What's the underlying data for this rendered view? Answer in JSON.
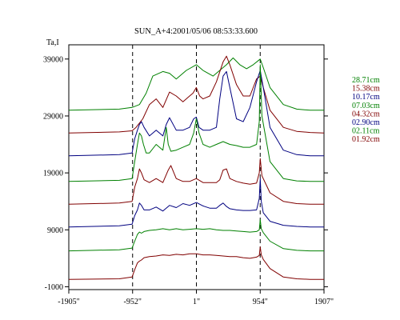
{
  "chart_data": {
    "type": "line",
    "title": "SUN_A+4:2001/05/06 08:53:33.600",
    "ylabel": "Ta,I",
    "xlabel": "",
    "x_ticks": [
      -1905,
      -952,
      1,
      954,
      1907
    ],
    "x_tick_labels": [
      "-1905\"",
      "-952\"",
      "1\"",
      "954\"",
      "1907\""
    ],
    "y_ticks": [
      39000,
      29000,
      19000,
      9000,
      -1000
    ],
    "y_tick_labels": [
      "39000",
      "29000",
      "19000",
      "9000",
      "-1000"
    ],
    "xlim": [
      -1905,
      1907
    ],
    "ylim": [
      -1500,
      41500
    ],
    "vlines": [
      -952,
      1,
      954
    ],
    "grid": false,
    "legend_position": "right",
    "colors": {
      "green": "#008000",
      "red": "#800000",
      "blue": "#000080"
    },
    "series": [
      {
        "name": "28.71cm",
        "color": "green",
        "x": [
          -1905,
          -1150,
          -960,
          -850,
          -750,
          -650,
          -500,
          -400,
          -300,
          -150,
          0,
          100,
          250,
          450,
          550,
          650,
          750,
          850,
          954,
          1000,
          1100,
          1300,
          1500,
          1700,
          1907
        ],
        "y": [
          30000,
          30200,
          30500,
          31000,
          33000,
          36000,
          36800,
          36500,
          35500,
          37000,
          38000,
          37000,
          36000,
          38000,
          39200,
          38000,
          37300,
          38000,
          39000,
          37500,
          34000,
          31000,
          30200,
          30000,
          30000
        ]
      },
      {
        "name": "15.38cm",
        "color": "red",
        "x": [
          -1905,
          -1150,
          -960,
          -900,
          -800,
          -700,
          -600,
          -500,
          -400,
          -300,
          -200,
          -100,
          -50,
          0,
          50,
          100,
          200,
          300,
          400,
          450,
          500,
          600,
          700,
          800,
          900,
          954,
          1000,
          1100,
          1300,
          1500,
          1700,
          1907
        ],
        "y": [
          26000,
          26200,
          26400,
          27000,
          28500,
          31000,
          32000,
          30500,
          33200,
          32500,
          31500,
          32500,
          33000,
          34000,
          32500,
          32000,
          32500,
          35000,
          38500,
          39500,
          38000,
          34500,
          32500,
          32500,
          35500,
          36000,
          34000,
          30000,
          27000,
          26300,
          26100,
          26000
        ]
      },
      {
        "name": "10.17cm",
        "color": "blue",
        "x": [
          -1905,
          -1150,
          -960,
          -920,
          -880,
          -850,
          -820,
          -780,
          -700,
          -600,
          -500,
          -450,
          -400,
          -300,
          -200,
          -100,
          -40,
          0,
          40,
          100,
          200,
          300,
          350,
          400,
          450,
          500,
          600,
          700,
          800,
          900,
          954,
          1000,
          1100,
          1300,
          1500,
          1700,
          1907
        ],
        "y": [
          22000,
          22200,
          22500,
          25000,
          26500,
          27500,
          28000,
          27000,
          25500,
          26500,
          25500,
          27500,
          28700,
          26500,
          26500,
          27000,
          28500,
          28800,
          27000,
          26500,
          26500,
          27000,
          32000,
          36000,
          36800,
          34000,
          28500,
          28000,
          30500,
          35000,
          37000,
          34000,
          27000,
          23000,
          22200,
          22000,
          22000
        ]
      },
      {
        "name": "07.03cm",
        "color": "green",
        "x": [
          -1905,
          -1150,
          -960,
          -920,
          -880,
          -850,
          -820,
          -790,
          -750,
          -700,
          -600,
          -500,
          -450,
          -420,
          -380,
          -300,
          -200,
          -100,
          -40,
          0,
          40,
          100,
          200,
          300,
          400,
          500,
          600,
          700,
          800,
          900,
          940,
          954,
          980,
          1100,
          1300,
          1500,
          1700,
          1907
        ],
        "y": [
          17500,
          17700,
          18000,
          21000,
          24000,
          26000,
          25500,
          24000,
          22500,
          22500,
          24000,
          23000,
          27000,
          24000,
          22800,
          23000,
          23500,
          24000,
          26000,
          28500,
          26000,
          24000,
          23500,
          24000,
          24500,
          24000,
          23800,
          23500,
          23500,
          24000,
          28000,
          38000,
          29000,
          21000,
          18000,
          17600,
          17500,
          17500
        ]
      },
      {
        "name": "04.32cm",
        "color": "red",
        "x": [
          -1905,
          -1150,
          -960,
          -920,
          -880,
          -850,
          -820,
          -780,
          -700,
          -600,
          -500,
          -420,
          -380,
          -300,
          -200,
          -100,
          0,
          100,
          200,
          300,
          350,
          400,
          450,
          500,
          600,
          700,
          800,
          900,
          940,
          954,
          980,
          1100,
          1300,
          1500,
          1700,
          1907
        ],
        "y": [
          13500,
          13700,
          14000,
          16500,
          18000,
          19700,
          19000,
          17800,
          17300,
          18000,
          17300,
          19500,
          20300,
          18000,
          17500,
          17500,
          18000,
          17300,
          17300,
          17300,
          17800,
          19500,
          19700,
          18000,
          17500,
          17200,
          17000,
          17200,
          19000,
          21500,
          18500,
          15500,
          14000,
          13600,
          13500,
          13500
        ]
      },
      {
        "name": "02.90cm",
        "color": "blue",
        "x": [
          -1905,
          -1150,
          -960,
          -920,
          -880,
          -850,
          -820,
          -780,
          -700,
          -600,
          -500,
          -400,
          -300,
          -200,
          -100,
          0,
          100,
          200,
          300,
          350,
          400,
          450,
          500,
          600,
          700,
          800,
          900,
          940,
          954,
          970,
          1000,
          1100,
          1300,
          1500,
          1700,
          1907
        ],
        "y": [
          9500,
          9700,
          10000,
          11500,
          12500,
          13700,
          13300,
          12500,
          12500,
          13000,
          12300,
          13300,
          12900,
          13600,
          13300,
          13800,
          13200,
          12800,
          12800,
          13300,
          13700,
          13100,
          12700,
          12500,
          12400,
          12400,
          12500,
          14500,
          18000,
          14000,
          12000,
          10500,
          9800,
          9600,
          9500,
          9500
        ]
      },
      {
        "name": "02.11cm",
        "color": "green",
        "x": [
          -1905,
          -1150,
          -960,
          -920,
          -880,
          -850,
          -820,
          -780,
          -700,
          -600,
          -500,
          -400,
          -300,
          -200,
          -100,
          0,
          100,
          200,
          300,
          400,
          500,
          600,
          700,
          800,
          900,
          940,
          954,
          970,
          1000,
          1100,
          1300,
          1500,
          1700,
          1907
        ],
        "y": [
          5300,
          5500,
          5800,
          7000,
          8200,
          8600,
          8400,
          8700,
          8900,
          9000,
          9200,
          9000,
          9200,
          9000,
          9100,
          9200,
          9100,
          9200,
          9000,
          8900,
          8900,
          8800,
          8700,
          8600,
          8700,
          9000,
          10800,
          9200,
          8500,
          7000,
          5700,
          5400,
          5300,
          5300
        ]
      },
      {
        "name": "01.92cm",
        "color": "red",
        "x": [
          -1905,
          -1150,
          -960,
          -920,
          -880,
          -850,
          -820,
          -780,
          -700,
          -600,
          -500,
          -400,
          -300,
          -200,
          -100,
          0,
          100,
          200,
          300,
          400,
          500,
          600,
          700,
          800,
          900,
          940,
          954,
          970,
          1000,
          1100,
          1300,
          1500,
          1700,
          1907
        ],
        "y": [
          300,
          400,
          700,
          2000,
          3200,
          3500,
          3700,
          4100,
          4300,
          4400,
          4600,
          4500,
          4700,
          4600,
          4800,
          4800,
          4600,
          4600,
          4500,
          4400,
          4300,
          4300,
          4100,
          4000,
          4200,
          4500,
          6000,
          4600,
          3800,
          2200,
          700,
          400,
          300,
          300
        ]
      }
    ]
  }
}
